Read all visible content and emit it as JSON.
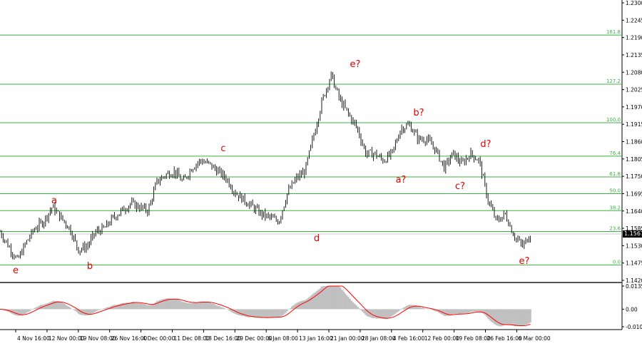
{
  "chart_data": {
    "type": "line",
    "title": "",
    "price_axis": {
      "range": [
        1.142,
        1.23
      ],
      "ticks": [
        "1.2300",
        "1.2245",
        "1.2190",
        "1.2135",
        "1.2080",
        "1.2025",
        "1.1970",
        "1.1915",
        "1.1860",
        "1.1805",
        "1.1750",
        "1.1695",
        "1.1640",
        "1.1585",
        "1.1530",
        "1.1475",
        "1.1420"
      ],
      "current_price": "1.1567"
    },
    "time_axis": {
      "ticks": [
        "4 Nov 16:00",
        "12 Nov 00:00",
        "19 Nov 08:00",
        "26 Nov 16:00",
        "4 Dec 00:00",
        "11 Dec 08:00",
        "18 Dec 16:00",
        "29 Dec 00:00",
        "6 Jan 08:00",
        "13 Jan 16:00",
        "21 Jan 00:00",
        "28 Jan 08:00",
        "4 Feb 16:00",
        "12 Feb 00:00",
        "19 Feb 08:00",
        "26 Feb 16:00",
        "6 Mar 00:00"
      ]
    },
    "price_series": [
      1.1574,
      1.1528,
      1.1483,
      1.154,
      1.1585,
      1.1607,
      1.1653,
      1.1619,
      1.1585,
      1.1517,
      1.1528,
      1.1574,
      1.1585,
      1.1619,
      1.1641,
      1.1664,
      1.1653,
      1.1641,
      1.1732,
      1.1755,
      1.1766,
      1.1732,
      1.1777,
      1.18,
      1.1789,
      1.1766,
      1.1743,
      1.1698,
      1.1675,
      1.1653,
      1.163,
      1.1619,
      1.1607,
      1.1698,
      1.1743,
      1.1766,
      1.1879,
      1.1992,
      1.2071,
      1.1992,
      1.1947,
      1.1902,
      1.1822,
      1.1822,
      1.18,
      1.1822,
      1.1902,
      1.1913,
      1.1868,
      1.1868,
      1.1834,
      1.1777,
      1.1822,
      1.1789,
      1.1822,
      1.18,
      1.1675,
      1.1607,
      1.163,
      1.1562,
      1.1528,
      1.1574
    ],
    "fibonacci_levels": [
      {
        "label": "161.8",
        "price": 1.2198
      },
      {
        "label": "127.2",
        "price": 1.2042
      },
      {
        "label": "100.0",
        "price": 1.192
      },
      {
        "label": "76.4",
        "price": 1.1814
      },
      {
        "label": "61.8",
        "price": 1.1748
      },
      {
        "label": "50.0",
        "price": 1.1695
      },
      {
        "label": "38.2",
        "price": 1.1641
      },
      {
        "label": "23.6",
        "price": 1.1575
      },
      {
        "label": "0.0",
        "price": 1.1469
      }
    ],
    "wave_labels": [
      "e",
      "a",
      "b",
      "c",
      "d",
      "e?",
      "a?",
      "b?",
      "c?",
      "d?",
      "e?"
    ],
    "oscillator": {
      "ticks": [
        "0.0135",
        "0.00",
        "-0.01026"
      ],
      "range": [
        -0.01026,
        0.0135
      ]
    },
    "colors": {
      "fib": "#3cb043",
      "wave_label": "#e00000",
      "price": "#000000",
      "histogram": "#c0c0c0",
      "signal": "#ff0000"
    }
  }
}
